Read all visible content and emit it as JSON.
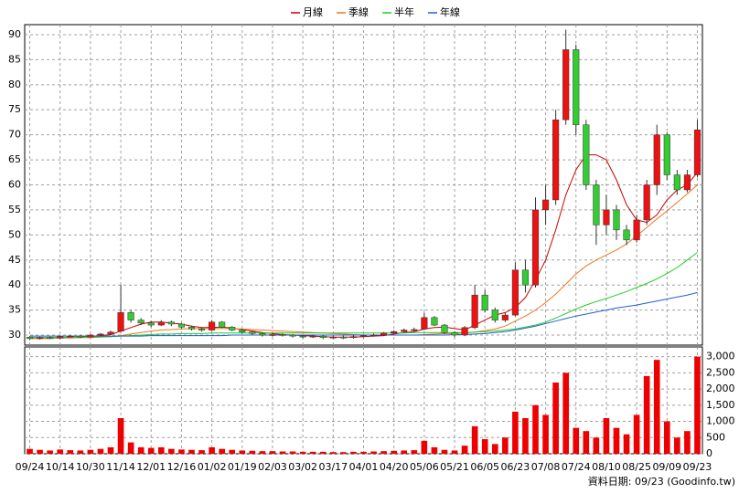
{
  "chart_data": {
    "type": "candlestick",
    "categories": [
      "09/24",
      null,
      null,
      "10/14",
      null,
      null,
      "10/30",
      null,
      null,
      "11/14",
      null,
      null,
      "12/01",
      null,
      null,
      "12/16",
      null,
      null,
      "01/02",
      null,
      null,
      "01/19",
      null,
      null,
      "02/03",
      null,
      null,
      "03/02",
      null,
      null,
      "03/17",
      null,
      null,
      "04/01",
      null,
      null,
      "04/20",
      null,
      null,
      "05/06",
      null,
      null,
      "05/21",
      null,
      null,
      "06/05",
      null,
      null,
      "06/23",
      null,
      null,
      "07/08",
      null,
      null,
      "07/24",
      null,
      null,
      "08/10",
      null,
      null,
      "08/25",
      null,
      null,
      "09/09",
      null,
      null,
      "09/23"
    ],
    "open": [
      29.6,
      29.3,
      29.5,
      29.4,
      29.7,
      29.8,
      29.6,
      30.0,
      30.2,
      30.8,
      34.5,
      33.0,
      32.4,
      32.0,
      32.6,
      32.2,
      31.6,
      31.2,
      31.0,
      32.6,
      31.6,
      31.0,
      30.6,
      30.3,
      30.0,
      30.1,
      30.0,
      29.8,
      29.7,
      29.8,
      29.5,
      29.6,
      29.5,
      29.7,
      29.9,
      30.0,
      30.4,
      30.7,
      31.0,
      31.2,
      33.5,
      32.0,
      30.5,
      30.0,
      31.5,
      38.0,
      35.0,
      33.0,
      34.0,
      43.0,
      40.0,
      55.0,
      57.0,
      73.0,
      87.0,
      72.0,
      60.0,
      52.0,
      55.0,
      51.0,
      49.0,
      53.0,
      60.0,
      70.0,
      62.0,
      59.0,
      62.0
    ],
    "high": [
      29.8,
      29.7,
      29.7,
      29.9,
      30.0,
      30.0,
      30.2,
      30.4,
      30.9,
      40.0,
      35.0,
      33.4,
      32.8,
      33.0,
      32.9,
      32.4,
      31.9,
      31.5,
      33.0,
      32.8,
      31.8,
      31.2,
      30.8,
      30.5,
      30.4,
      30.4,
      30.2,
      30.0,
      30.1,
      30.0,
      29.9,
      29.9,
      30.0,
      30.1,
      30.3,
      30.6,
      31.0,
      31.3,
      31.5,
      34.5,
      33.8,
      32.2,
      30.8,
      31.8,
      40.0,
      39.0,
      35.5,
      34.5,
      44.5,
      45.0,
      57.5,
      60.0,
      75.0,
      91.0,
      88.0,
      73.0,
      61.0,
      58.0,
      56.0,
      52.0,
      54.0,
      61.0,
      72.0,
      70.5,
      63.0,
      63.0,
      73.0
    ],
    "low": [
      29.0,
      29.1,
      29.2,
      29.2,
      29.5,
      29.4,
      29.5,
      29.8,
      30.0,
      30.6,
      32.5,
      32.0,
      31.6,
      31.8,
      31.8,
      31.3,
      30.9,
      30.7,
      30.8,
      31.4,
      30.8,
      30.3,
      30.0,
      29.7,
      29.7,
      29.7,
      29.5,
      29.4,
      29.4,
      29.2,
      29.3,
      29.2,
      29.3,
      29.5,
      29.7,
      29.9,
      30.2,
      30.5,
      30.7,
      31.0,
      31.8,
      30.2,
      29.6,
      29.8,
      31.2,
      34.5,
      32.5,
      32.6,
      33.8,
      38.5,
      39.5,
      52.0,
      56.0,
      72.0,
      70.0,
      59.0,
      48.0,
      50.0,
      49.0,
      48.0,
      48.5,
      52.0,
      58.0,
      61.0,
      58.0,
      58.5,
      61.5
    ],
    "close": [
      29.3,
      29.5,
      29.4,
      29.7,
      29.8,
      29.6,
      30.0,
      30.2,
      30.6,
      34.5,
      33.0,
      32.4,
      32.0,
      32.6,
      32.2,
      31.6,
      31.2,
      31.0,
      32.6,
      31.6,
      31.0,
      30.6,
      30.3,
      30.0,
      30.1,
      30.0,
      29.8,
      29.7,
      29.8,
      29.5,
      29.6,
      29.5,
      29.7,
      29.9,
      30.0,
      30.4,
      30.7,
      31.0,
      31.1,
      33.5,
      32.0,
      30.5,
      30.0,
      31.5,
      38.0,
      35.0,
      33.0,
      34.0,
      43.0,
      40.0,
      55.0,
      57.0,
      73.0,
      87.0,
      72.0,
      60.0,
      52.0,
      55.0,
      51.0,
      49.0,
      53.0,
      60.0,
      70.0,
      62.0,
      59.0,
      62.0,
      71.0
    ],
    "volume": [
      150,
      120,
      100,
      130,
      110,
      100,
      120,
      150,
      200,
      1100,
      350,
      200,
      180,
      200,
      150,
      130,
      120,
      110,
      200,
      150,
      120,
      100,
      90,
      80,
      80,
      70,
      70,
      60,
      60,
      60,
      50,
      50,
      60,
      60,
      70,
      80,
      90,
      100,
      110,
      400,
      200,
      120,
      100,
      250,
      850,
      450,
      300,
      500,
      1300,
      1100,
      1500,
      1200,
      2200,
      2500,
      800,
      700,
      500,
      1100,
      800,
      600,
      1200,
      2400,
      2900,
      1000,
      500,
      700,
      3000
    ],
    "series": [
      {
        "name": "月線",
        "color": "#cc0000",
        "values": [
          29.5,
          29.5,
          29.5,
          29.5,
          29.6,
          29.6,
          29.7,
          29.9,
          30.1,
          30.8,
          31.5,
          32.2,
          32.6,
          32.6,
          32.4,
          32.2,
          31.8,
          31.5,
          31.5,
          31.6,
          31.4,
          31.1,
          30.8,
          30.5,
          30.3,
          30.1,
          30.0,
          29.9,
          29.8,
          29.7,
          29.6,
          29.6,
          29.6,
          29.7,
          29.8,
          29.9,
          30.2,
          30.5,
          30.7,
          31.2,
          31.5,
          31.6,
          31.3,
          31.0,
          32.0,
          33.0,
          34.0,
          34.5,
          35.5,
          37.5,
          41.0,
          45.0,
          51.0,
          58.0,
          63.0,
          66.0,
          66.0,
          65.0,
          61.0,
          56.0,
          53.0,
          52.5,
          54.0,
          57.0,
          59.0,
          60.0,
          62.5
        ]
      },
      {
        "name": "季線",
        "color": "#e87722",
        "values": [
          29.3,
          29.3,
          29.3,
          29.4,
          29.4,
          29.5,
          29.5,
          29.6,
          29.7,
          29.9,
          30.2,
          30.5,
          30.8,
          31.0,
          31.1,
          31.2,
          31.3,
          31.3,
          31.3,
          31.3,
          31.3,
          31.2,
          31.1,
          31.0,
          30.9,
          30.8,
          30.7,
          30.6,
          30.5,
          30.4,
          30.3,
          30.2,
          30.1,
          30.0,
          30.0,
          30.0,
          30.0,
          30.0,
          30.0,
          30.1,
          30.2,
          30.3,
          30.3,
          30.4,
          30.6,
          30.9,
          31.2,
          31.8,
          32.8,
          33.8,
          35.0,
          36.5,
          38.2,
          40.2,
          42.2,
          43.8,
          45.0,
          46.0,
          47.0,
          48.2,
          49.8,
          51.5,
          53.2,
          54.8,
          56.5,
          58.2,
          60.0
        ]
      },
      {
        "name": "半年",
        "color": "#22cc22",
        "values": [
          29.5,
          29.5,
          29.5,
          29.5,
          29.6,
          29.6,
          29.6,
          29.7,
          29.7,
          29.8,
          29.9,
          30.0,
          30.1,
          30.2,
          30.2,
          30.3,
          30.3,
          30.3,
          30.4,
          30.4,
          30.4,
          30.4,
          30.4,
          30.4,
          30.4,
          30.4,
          30.4,
          30.4,
          30.4,
          30.4,
          30.4,
          30.4,
          30.4,
          30.4,
          30.4,
          30.4,
          30.4,
          30.4,
          30.5,
          30.5,
          30.5,
          30.5,
          30.5,
          30.5,
          30.6,
          30.7,
          30.8,
          31.0,
          31.2,
          31.6,
          32.0,
          32.6,
          33.4,
          34.3,
          35.2,
          36.0,
          36.7,
          37.3,
          38.0,
          38.7,
          39.5,
          40.3,
          41.2,
          42.3,
          43.5,
          45.0,
          46.5
        ]
      },
      {
        "name": "年線",
        "color": "#1f5fd6",
        "values": [
          29.8,
          29.8,
          29.8,
          29.8,
          29.8,
          29.8,
          29.8,
          29.8,
          29.8,
          29.8,
          29.8,
          29.8,
          29.9,
          29.9,
          29.9,
          29.9,
          29.9,
          29.9,
          29.9,
          29.9,
          30.0,
          30.0,
          30.0,
          30.0,
          30.0,
          30.0,
          30.0,
          30.0,
          30.0,
          30.0,
          30.0,
          30.0,
          30.0,
          30.0,
          30.0,
          30.0,
          30.0,
          30.0,
          30.0,
          30.0,
          30.0,
          30.0,
          30.1,
          30.1,
          30.2,
          30.3,
          30.5,
          30.7,
          31.0,
          31.4,
          31.8,
          32.3,
          32.8,
          33.3,
          33.8,
          34.2,
          34.6,
          35.0,
          35.4,
          35.7,
          36.0,
          36.4,
          36.8,
          37.2,
          37.6,
          38.0,
          38.5
        ]
      }
    ],
    "up_color": "#ee1111",
    "down_color": "#33cc33",
    "volume_color": "#ee0000",
    "ylim": [
      28,
      92
    ],
    "yticks": [
      30,
      35,
      40,
      45,
      50,
      55,
      60,
      65,
      70,
      75,
      80,
      85,
      90
    ],
    "volume_ylim": [
      0,
      3300
    ],
    "volume_ticks": [
      0,
      500,
      {
        "value": 1000,
        "label": "1,000"
      },
      {
        "value": 1500,
        "label": "1,500"
      },
      {
        "value": 2000,
        "label": "2,000"
      },
      {
        "value": 2500,
        "label": "2,500"
      },
      {
        "value": 3000,
        "label": "3,000"
      }
    ],
    "grid": true,
    "footer": "資料日期: 09/23 (Goodinfo.tw)"
  }
}
